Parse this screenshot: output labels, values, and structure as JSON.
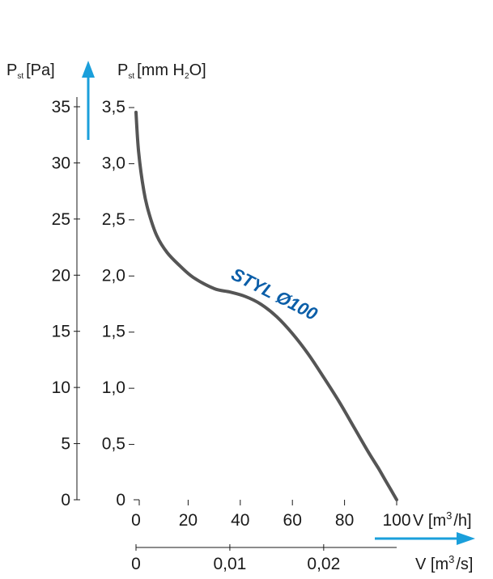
{
  "colors": {
    "curve": "#555555",
    "arrow": "#1a9fdb",
    "series_label": "#0b5ea8",
    "axis": "#1a1a1a"
  },
  "chart_data": {
    "type": "line",
    "title": "",
    "y_left": {
      "label_main": "P",
      "label_sub": "st",
      "label_unit": "[Pa]",
      "ticks": [
        "35",
        "30",
        "25",
        "20",
        "15",
        "10",
        "5",
        "0"
      ],
      "range": [
        0,
        35
      ]
    },
    "y_inner": {
      "label_main": "P",
      "label_sub": "st",
      "label_unit_a": "[mm H",
      "label_unit_sub": "2",
      "label_unit_b": "O]",
      "ticks": [
        "3,5",
        "3,0",
        "2,5",
        "2,0",
        "1,5",
        "1,0",
        "0,5",
        "0"
      ],
      "range": [
        0,
        3.5
      ]
    },
    "x_bottom1": {
      "label_a": "V [m",
      "label_sup": "3",
      "label_b": "/h]",
      "ticks": [
        "0",
        "20",
        "40",
        "60",
        "80",
        "100"
      ],
      "range": [
        0,
        100
      ]
    },
    "x_bottom2": {
      "label_a": "V [m",
      "label_sup": "3",
      "label_b": "/s]",
      "ticks": [
        "0",
        "0,01",
        "0,02"
      ]
    },
    "series": [
      {
        "name": "STYL Ø100",
        "x": [
          0,
          1,
          3,
          5,
          8,
          12,
          17,
          22,
          30,
          36,
          42,
          48,
          54,
          60,
          66,
          72,
          78,
          84,
          89,
          93,
          96,
          98,
          99.5,
          100
        ],
        "y": [
          34.5,
          31,
          27.5,
          25.5,
          23.5,
          22,
          20.8,
          19.8,
          18.8,
          18.5,
          18.1,
          17.4,
          16.3,
          14.8,
          13,
          10.9,
          8.7,
          6.3,
          4.3,
          2.8,
          1.6,
          0.8,
          0.2,
          0
        ]
      }
    ]
  }
}
